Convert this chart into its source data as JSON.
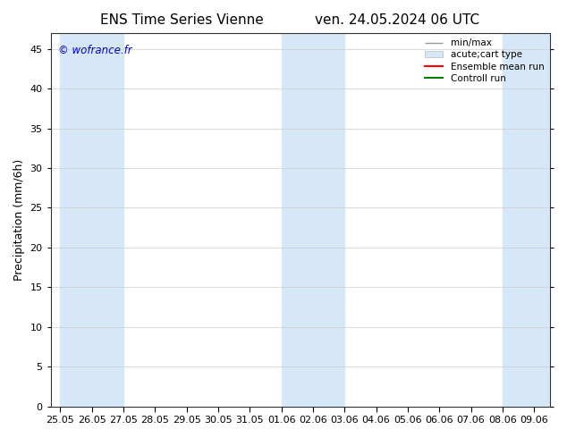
{
  "title_left": "ENS Time Series Vienne",
  "title_right": "ven. 24.05.2024 06 UTC",
  "ylabel": "Precipitation (mm/6h)",
  "watermark": "© wofrance.fr",
  "ylim": [
    0,
    47
  ],
  "yticks": [
    0,
    5,
    10,
    15,
    20,
    25,
    30,
    35,
    40,
    45
  ],
  "xtick_labels": [
    "25.05",
    "26.05",
    "27.05",
    "28.05",
    "29.05",
    "30.05",
    "31.05",
    "01.06",
    "02.06",
    "03.06",
    "04.06",
    "05.06",
    "06.06",
    "07.06",
    "08.06",
    "09.06"
  ],
  "shaded_regions": [
    {
      "xmin": 0,
      "xmax": 2,
      "color": "#d6e8f7"
    },
    {
      "xmin": 7,
      "xmax": 9,
      "color": "#d6e8f7"
    },
    {
      "xmin": 14,
      "xmax": 15.5,
      "color": "#d6e8f7"
    }
  ],
  "background_color": "#ffffff",
  "plot_bg_color": "#ffffff",
  "legend_labels": [
    "min/max",
    "acute;cart type",
    "Ensemble mean run",
    "Controll run"
  ],
  "legend_colors": [
    "#999999",
    "#d6e8f7",
    "#ff0000",
    "#008000"
  ],
  "title_fontsize": 11,
  "label_fontsize": 9,
  "tick_fontsize": 8
}
